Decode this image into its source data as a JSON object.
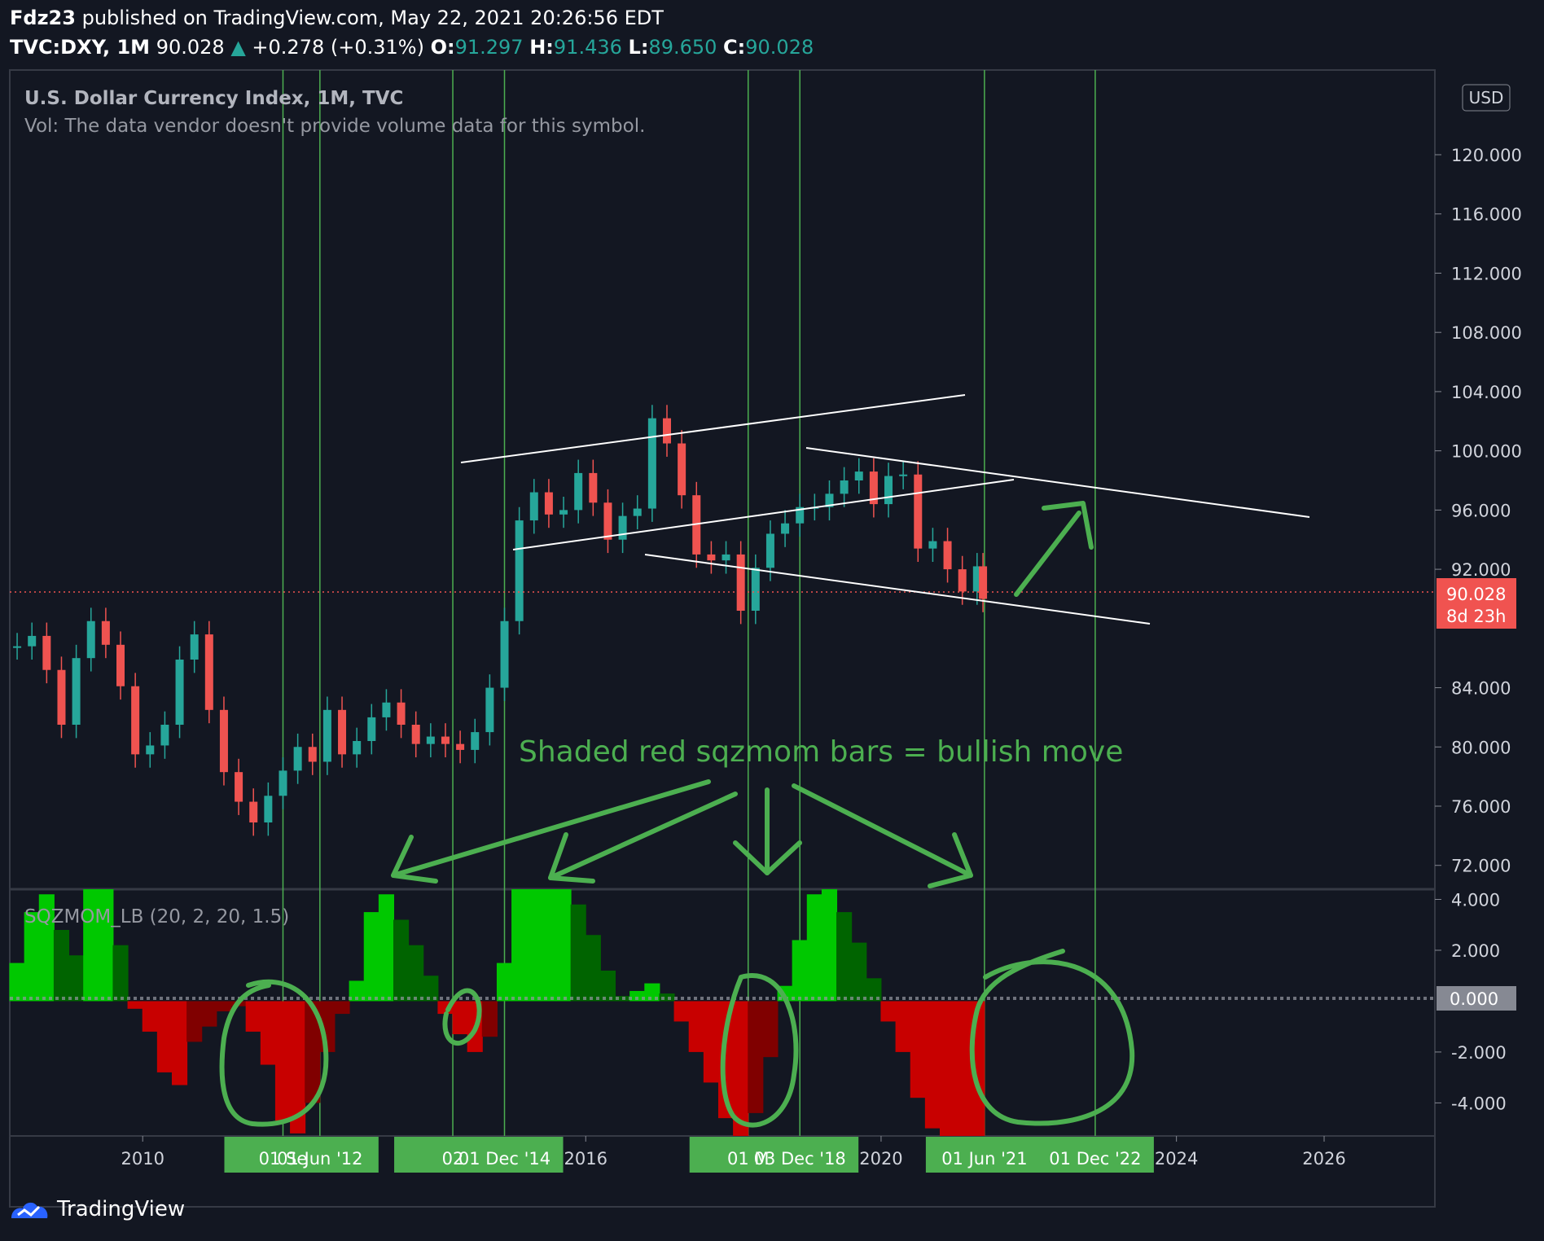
{
  "header": {
    "author": "Fdz23",
    "publish_text": "published on TradingView.com, May 22, 2021 20:26:56 EDT",
    "symbol": "TVC:DXY, 1M",
    "last": "90.028",
    "change": "+0.278 (+0.31%)",
    "o_label": "O:",
    "o_value": "91.297",
    "h_label": "H:",
    "h_value": "91.436",
    "l_label": "L:",
    "l_value": "89.650",
    "c_label": "C:",
    "c_value": "90.028"
  },
  "legend": {
    "title": "U.S. Dollar Currency Index, 1M, TVC",
    "vol_note": "Vol: The data vendor doesn't provide volume data for this symbol.",
    "indicator": "SQZMOM_LB (20, 2, 20, 1.5)",
    "currency_badge": "USD"
  },
  "annotation": {
    "text": "Shaded red sqzmom bars = bullish move",
    "color": "#4caf50"
  },
  "price_badge": {
    "value": "90.028",
    "countdown": "8d 23h",
    "color": "#f05350"
  },
  "zero_badge": "0.000",
  "footer": {
    "brand": "TradingView"
  },
  "colors": {
    "bg": "#131722",
    "up": "#26a69a",
    "down": "#ef5350",
    "vline": "#4caf50",
    "mom_bright_green": "#00c800",
    "mom_dark_green": "#006400",
    "mom_bright_red": "#c80000",
    "mom_dark_red": "#800000"
  },
  "chart_data": [
    {
      "type": "candlestick",
      "title": "U.S. Dollar Currency Index, 1M, TVC",
      "y_ticks": [
        "120.000",
        "116.000",
        "112.000",
        "108.000",
        "104.000",
        "100.000",
        "96.000",
        "92.000",
        "84.000",
        "80.000",
        "76.000",
        "72.000"
      ],
      "y_range": [
        70.5,
        125.5
      ],
      "x_range": [
        2008.2,
        2027.5
      ],
      "x_ticks": [
        "2010",
        "2016",
        "2020",
        "2024",
        "2026"
      ],
      "last_price": 90.028,
      "series_close": [
        [
          2008.3,
          86.8
        ],
        [
          2008.5,
          87.5
        ],
        [
          2008.7,
          85.2
        ],
        [
          2008.9,
          81.5
        ],
        [
          2009.1,
          86.0
        ],
        [
          2009.3,
          88.5
        ],
        [
          2009.5,
          86.9
        ],
        [
          2009.7,
          84.1
        ],
        [
          2009.9,
          79.5
        ],
        [
          2010.1,
          80.1
        ],
        [
          2010.3,
          81.5
        ],
        [
          2010.5,
          85.9
        ],
        [
          2010.7,
          87.6
        ],
        [
          2010.9,
          82.5
        ],
        [
          2011.1,
          78.3
        ],
        [
          2011.3,
          76.3
        ],
        [
          2011.5,
          74.9
        ],
        [
          2011.7,
          76.7
        ],
        [
          2011.9,
          78.4
        ],
        [
          2012.1,
          80.0
        ],
        [
          2012.3,
          79.0
        ],
        [
          2012.5,
          82.5
        ],
        [
          2012.7,
          79.5
        ],
        [
          2012.9,
          80.4
        ],
        [
          2013.1,
          82.0
        ],
        [
          2013.3,
          83.0
        ],
        [
          2013.5,
          81.5
        ],
        [
          2013.7,
          80.2
        ],
        [
          2013.9,
          80.7
        ],
        [
          2014.1,
          80.2
        ],
        [
          2014.3,
          79.8
        ],
        [
          2014.5,
          81.0
        ],
        [
          2014.7,
          84.0
        ],
        [
          2014.9,
          88.5
        ],
        [
          2015.1,
          95.3
        ],
        [
          2015.3,
          97.2
        ],
        [
          2015.5,
          95.7
        ],
        [
          2015.7,
          96.0
        ],
        [
          2015.9,
          98.5
        ],
        [
          2016.1,
          96.5
        ],
        [
          2016.3,
          94.0
        ],
        [
          2016.5,
          95.6
        ],
        [
          2016.7,
          96.1
        ],
        [
          2016.9,
          102.2
        ],
        [
          2017.1,
          100.5
        ],
        [
          2017.3,
          97.0
        ],
        [
          2017.5,
          93.0
        ],
        [
          2017.7,
          92.6
        ],
        [
          2017.9,
          93.0
        ],
        [
          2018.1,
          89.2
        ],
        [
          2018.3,
          92.1
        ],
        [
          2018.5,
          94.4
        ],
        [
          2018.7,
          95.1
        ],
        [
          2018.9,
          96.2
        ],
        [
          2019.1,
          96.2
        ],
        [
          2019.3,
          97.1
        ],
        [
          2019.5,
          98.0
        ],
        [
          2019.7,
          98.6
        ],
        [
          2019.9,
          96.4
        ],
        [
          2020.1,
          98.3
        ],
        [
          2020.3,
          98.4
        ],
        [
          2020.5,
          93.4
        ],
        [
          2020.7,
          93.9
        ],
        [
          2020.9,
          92.0
        ],
        [
          2021.1,
          90.5
        ],
        [
          2021.3,
          92.2
        ],
        [
          2021.38,
          90.0
        ]
      ]
    },
    {
      "type": "bar",
      "title": "SQZMOM_LB (20, 2, 20, 1.5)",
      "y_ticks": [
        "4.000",
        "2.000",
        "0.000",
        "-2.000",
        "-4.000"
      ],
      "y_range": [
        -5.3,
        4.4
      ],
      "x_labels": [
        "01 Se",
        "01 Jun '12",
        "02",
        "01 Dec '14",
        "01 M",
        "03 Dec '18",
        "01 Jun '21",
        "01 Dec '22"
      ],
      "vertical_line_dates": [
        "2011.9",
        "2012.4",
        "2014.2",
        "2014.9",
        "2018.2",
        "2018.9",
        "2021.4",
        "2022.9"
      ],
      "momentum": [
        [
          2008.3,
          1.5
        ],
        [
          2008.5,
          3.5
        ],
        [
          2008.7,
          4.2
        ],
        [
          2008.9,
          2.8
        ],
        [
          2009.1,
          1.8
        ],
        [
          2009.3,
          4.4
        ],
        [
          2009.5,
          4.4
        ],
        [
          2009.7,
          2.2
        ],
        [
          2009.9,
          -0.3
        ],
        [
          2010.1,
          -1.2
        ],
        [
          2010.3,
          -2.8
        ],
        [
          2010.5,
          -3.3
        ],
        [
          2010.7,
          -1.6
        ],
        [
          2010.9,
          -1.0
        ],
        [
          2011.1,
          -0.4
        ],
        [
          2011.3,
          -0.2
        ],
        [
          2011.5,
          -1.2
        ],
        [
          2011.7,
          -2.5
        ],
        [
          2011.9,
          -4.7
        ],
        [
          2012.1,
          -5.2
        ],
        [
          2012.3,
          -4.0
        ],
        [
          2012.5,
          -2.0
        ],
        [
          2012.7,
          -0.5
        ],
        [
          2012.9,
          0.8
        ],
        [
          2013.1,
          3.5
        ],
        [
          2013.3,
          4.2
        ],
        [
          2013.5,
          3.2
        ],
        [
          2013.7,
          2.2
        ],
        [
          2013.9,
          1.0
        ],
        [
          2014.1,
          -0.5
        ],
        [
          2014.3,
          -1.3
        ],
        [
          2014.5,
          -2.0
        ],
        [
          2014.7,
          -1.4
        ],
        [
          2014.9,
          1.5
        ],
        [
          2015.1,
          4.4
        ],
        [
          2015.3,
          4.4
        ],
        [
          2015.5,
          4.4
        ],
        [
          2015.7,
          4.4
        ],
        [
          2015.9,
          3.8
        ],
        [
          2016.1,
          2.6
        ],
        [
          2016.3,
          1.2
        ],
        [
          2016.5,
          0.2
        ],
        [
          2016.7,
          0.4
        ],
        [
          2016.9,
          0.7
        ],
        [
          2017.1,
          0.3
        ],
        [
          2017.3,
          -0.8
        ],
        [
          2017.5,
          -2.0
        ],
        [
          2017.7,
          -3.2
        ],
        [
          2017.9,
          -4.6
        ],
        [
          2018.1,
          -5.3
        ],
        [
          2018.3,
          -4.4
        ],
        [
          2018.5,
          -2.2
        ],
        [
          2018.7,
          0.6
        ],
        [
          2018.9,
          2.4
        ],
        [
          2019.1,
          4.2
        ],
        [
          2019.3,
          4.4
        ],
        [
          2019.5,
          3.5
        ],
        [
          2019.7,
          2.3
        ],
        [
          2019.9,
          0.9
        ],
        [
          2020.1,
          -0.8
        ],
        [
          2020.3,
          -2.0
        ],
        [
          2020.5,
          -3.8
        ],
        [
          2020.7,
          -5.0
        ],
        [
          2020.9,
          -5.3
        ],
        [
          2021.1,
          -5.3
        ],
        [
          2021.3,
          -5.3
        ]
      ]
    }
  ]
}
